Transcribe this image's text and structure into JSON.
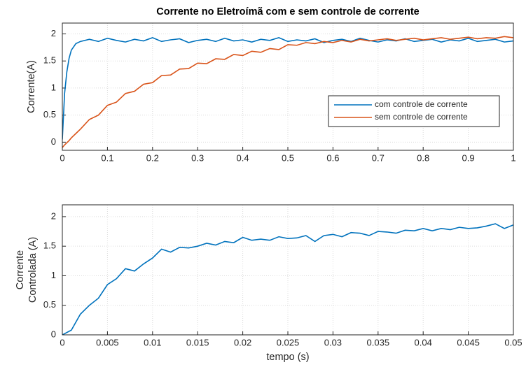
{
  "chart_data": [
    {
      "type": "line",
      "title": "Corrente no Eletroímã com e sem controle de corrente",
      "ylabel": "Corrente(A)",
      "x": [
        0,
        0.005,
        0.01,
        0.015,
        0.02,
        0.03,
        0.04,
        0.06,
        0.08,
        0.1,
        0.12,
        0.14,
        0.16,
        0.18,
        0.2,
        0.22,
        0.24,
        0.26,
        0.28,
        0.3,
        0.32,
        0.34,
        0.36,
        0.38,
        0.4,
        0.42,
        0.44,
        0.46,
        0.48,
        0.5,
        0.52,
        0.54,
        0.56,
        0.58,
        0.6,
        0.62,
        0.64,
        0.66,
        0.68,
        0.7,
        0.72,
        0.74,
        0.76,
        0.78,
        0.8,
        0.82,
        0.84,
        0.86,
        0.88,
        0.9,
        0.92,
        0.94,
        0.96,
        0.98,
        1
      ],
      "series": [
        {
          "name": "com controle de corrente",
          "color": "#0072BD",
          "values": [
            0.05,
            0.9,
            1.3,
            1.55,
            1.7,
            1.82,
            1.86,
            1.9,
            1.86,
            1.92,
            1.88,
            1.85,
            1.9,
            1.87,
            1.93,
            1.86,
            1.89,
            1.91,
            1.84,
            1.88,
            1.9,
            1.86,
            1.92,
            1.87,
            1.89,
            1.85,
            1.9,
            1.88,
            1.93,
            1.86,
            1.89,
            1.87,
            1.91,
            1.84,
            1.88,
            1.9,
            1.86,
            1.92,
            1.88,
            1.85,
            1.89,
            1.87,
            1.91,
            1.86,
            1.88,
            1.9,
            1.85,
            1.89,
            1.87,
            1.92,
            1.86,
            1.88,
            1.9,
            1.85,
            1.87
          ]
        },
        {
          "name": "sem controle de corrente",
          "color": "#D95319",
          "values": [
            -0.1,
            -0.05,
            -0.01,
            0.03,
            0.08,
            0.16,
            0.24,
            0.42,
            0.5,
            0.68,
            0.74,
            0.9,
            0.94,
            1.07,
            1.1,
            1.23,
            1.24,
            1.35,
            1.36,
            1.46,
            1.45,
            1.54,
            1.53,
            1.62,
            1.6,
            1.68,
            1.66,
            1.73,
            1.71,
            1.8,
            1.79,
            1.84,
            1.82,
            1.86,
            1.84,
            1.88,
            1.85,
            1.9,
            1.87,
            1.89,
            1.91,
            1.88,
            1.9,
            1.92,
            1.89,
            1.91,
            1.93,
            1.9,
            1.92,
            1.94,
            1.91,
            1.93,
            1.92,
            1.95,
            1.93
          ]
        }
      ],
      "xlim": [
        0,
        1
      ],
      "xticks": [
        0,
        0.1,
        0.2,
        0.3,
        0.4,
        0.5,
        0.6,
        0.7,
        0.8,
        0.9,
        1
      ],
      "ylim": [
        -0.15,
        2.2
      ],
      "yticks": [
        0,
        0.5,
        1,
        1.5,
        2
      ],
      "grid": true,
      "legend": "east"
    },
    {
      "type": "line",
      "ylabel": [
        "Corrente",
        "Controlada (A)"
      ],
      "xlabel": "tempo (s)",
      "x": [
        0,
        0.001,
        0.002,
        0.003,
        0.004,
        0.005,
        0.006,
        0.007,
        0.008,
        0.009,
        0.01,
        0.011,
        0.012,
        0.013,
        0.014,
        0.015,
        0.016,
        0.017,
        0.018,
        0.019,
        0.02,
        0.021,
        0.022,
        0.023,
        0.024,
        0.025,
        0.026,
        0.027,
        0.028,
        0.029,
        0.03,
        0.031,
        0.032,
        0.033,
        0.034,
        0.035,
        0.036,
        0.037,
        0.038,
        0.039,
        0.04,
        0.041,
        0.042,
        0.043,
        0.044,
        0.045,
        0.046,
        0.047,
        0.048,
        0.049,
        0.05
      ],
      "series": [
        {
          "color": "#0072BD",
          "values": [
            0,
            0.08,
            0.35,
            0.5,
            0.62,
            0.85,
            0.95,
            1.12,
            1.08,
            1.2,
            1.3,
            1.45,
            1.4,
            1.48,
            1.47,
            1.5,
            1.55,
            1.52,
            1.58,
            1.56,
            1.65,
            1.6,
            1.62,
            1.6,
            1.66,
            1.63,
            1.64,
            1.68,
            1.58,
            1.68,
            1.7,
            1.66,
            1.73,
            1.72,
            1.68,
            1.75,
            1.74,
            1.72,
            1.77,
            1.76,
            1.8,
            1.76,
            1.8,
            1.78,
            1.82,
            1.8,
            1.81,
            1.84,
            1.88,
            1.8,
            1.86
          ]
        }
      ],
      "xlim": [
        0,
        0.05
      ],
      "xticks": [
        0,
        0.005,
        0.01,
        0.015,
        0.02,
        0.025,
        0.03,
        0.035,
        0.04,
        0.045,
        0.05
      ],
      "ylim": [
        0,
        2.2
      ],
      "yticks": [
        0,
        0.5,
        1,
        1.5,
        2
      ],
      "grid": true
    }
  ]
}
